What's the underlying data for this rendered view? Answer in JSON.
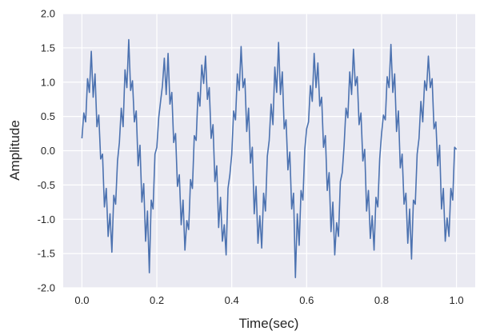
{
  "chart_data": {
    "type": "line",
    "title": "",
    "xlabel": "Time(sec)",
    "ylabel": "Amplitude",
    "xlim": [
      -0.05,
      1.05
    ],
    "ylim": [
      -2.0,
      2.0
    ],
    "xticks": [
      "0.0",
      "0.2",
      "0.4",
      "0.6",
      "0.8",
      "1.0"
    ],
    "yticks": [
      "-2.0",
      "-1.5",
      "-1.0",
      "-0.5",
      "0.0",
      "0.5",
      "1.0",
      "1.5",
      "2.0"
    ],
    "grid": true,
    "style": "seaborn-darkgrid",
    "colors": {
      "background": "#EAEAF2",
      "grid": "#FFFFFF",
      "line": "#4C72B0"
    },
    "x_start": 0.0,
    "x_step": 0.005,
    "y": [
      0.18,
      0.55,
      0.42,
      1.05,
      0.85,
      1.45,
      0.78,
      1.12,
      0.35,
      0.52,
      -0.12,
      -0.05,
      -0.82,
      -0.55,
      -1.25,
      -0.92,
      -1.48,
      -0.65,
      -0.78,
      -0.15,
      0.12,
      0.62,
      0.35,
      1.18,
      0.92,
      1.62,
      0.88,
      1.02,
      0.42,
      0.58,
      -0.22,
      0.08,
      -0.75,
      -0.48,
      -1.32,
      -0.88,
      -1.78,
      -0.72,
      -0.85,
      -0.05,
      0.05,
      0.48,
      0.72,
      0.95,
      1.35,
      0.82,
      1.42,
      0.68,
      0.85,
      0.12,
      0.25,
      -0.52,
      -0.35,
      -1.08,
      -0.72,
      -1.45,
      -1.02,
      -1.15,
      -0.42,
      -0.55,
      0.22,
      0.15,
      0.85,
      0.65,
      1.25,
      0.98,
      1.38,
      0.75,
      0.92,
      0.18,
      0.38,
      -0.45,
      -0.22,
      -1.12,
      -0.68,
      -1.32,
      -1.08,
      -1.52,
      -0.55,
      -0.35,
      -0.05,
      0.58,
      0.45,
      1.12,
      0.88,
      1.52,
      0.92,
      1.05,
      0.28,
      0.62,
      -0.18,
      0.05,
      -0.92,
      -0.52,
      -1.35,
      -0.95,
      -1.42,
      -0.62,
      -0.88,
      -0.08,
      0.15,
      0.68,
      0.38,
      1.22,
      0.85,
      1.58,
      0.82,
      1.15,
      0.32,
      0.45,
      -0.28,
      -0.02,
      -0.85,
      -0.62,
      -1.85,
      -0.92,
      -1.38,
      -0.58,
      -0.72,
      0.02,
      0.32,
      0.42,
      0.95,
      0.72,
      1.42,
      0.92,
      1.28,
      0.65,
      0.78,
      0.05,
      0.22,
      -0.58,
      -0.32,
      -1.18,
      -0.75,
      -1.52,
      -1.05,
      -1.25,
      -0.45,
      -0.32,
      0.08,
      0.62,
      0.48,
      1.15,
      0.82,
      1.48,
      0.95,
      1.08,
      0.38,
      0.55,
      -0.15,
      0.02,
      -0.88,
      -0.58,
      -1.28,
      -0.95,
      -1.45,
      -0.68,
      -0.82,
      -0.12,
      0.25,
      0.52,
      0.45,
      1.08,
      0.92,
      1.55,
      0.85,
      1.12,
      0.28,
      0.58,
      -0.25,
      -0.05,
      -0.78,
      -0.62,
      -1.35,
      -0.85,
      -1.58,
      -0.72,
      -0.78,
      -0.05,
      0.18,
      0.72,
      0.42,
      1.02,
      0.88,
      1.38,
      0.92,
      1.05,
      0.32,
      0.42,
      -0.22,
      0.08,
      -0.85,
      -0.55,
      -1.32,
      -0.98,
      -1.25,
      -0.55,
      -0.72,
      0.05,
      0.02
    ]
  }
}
